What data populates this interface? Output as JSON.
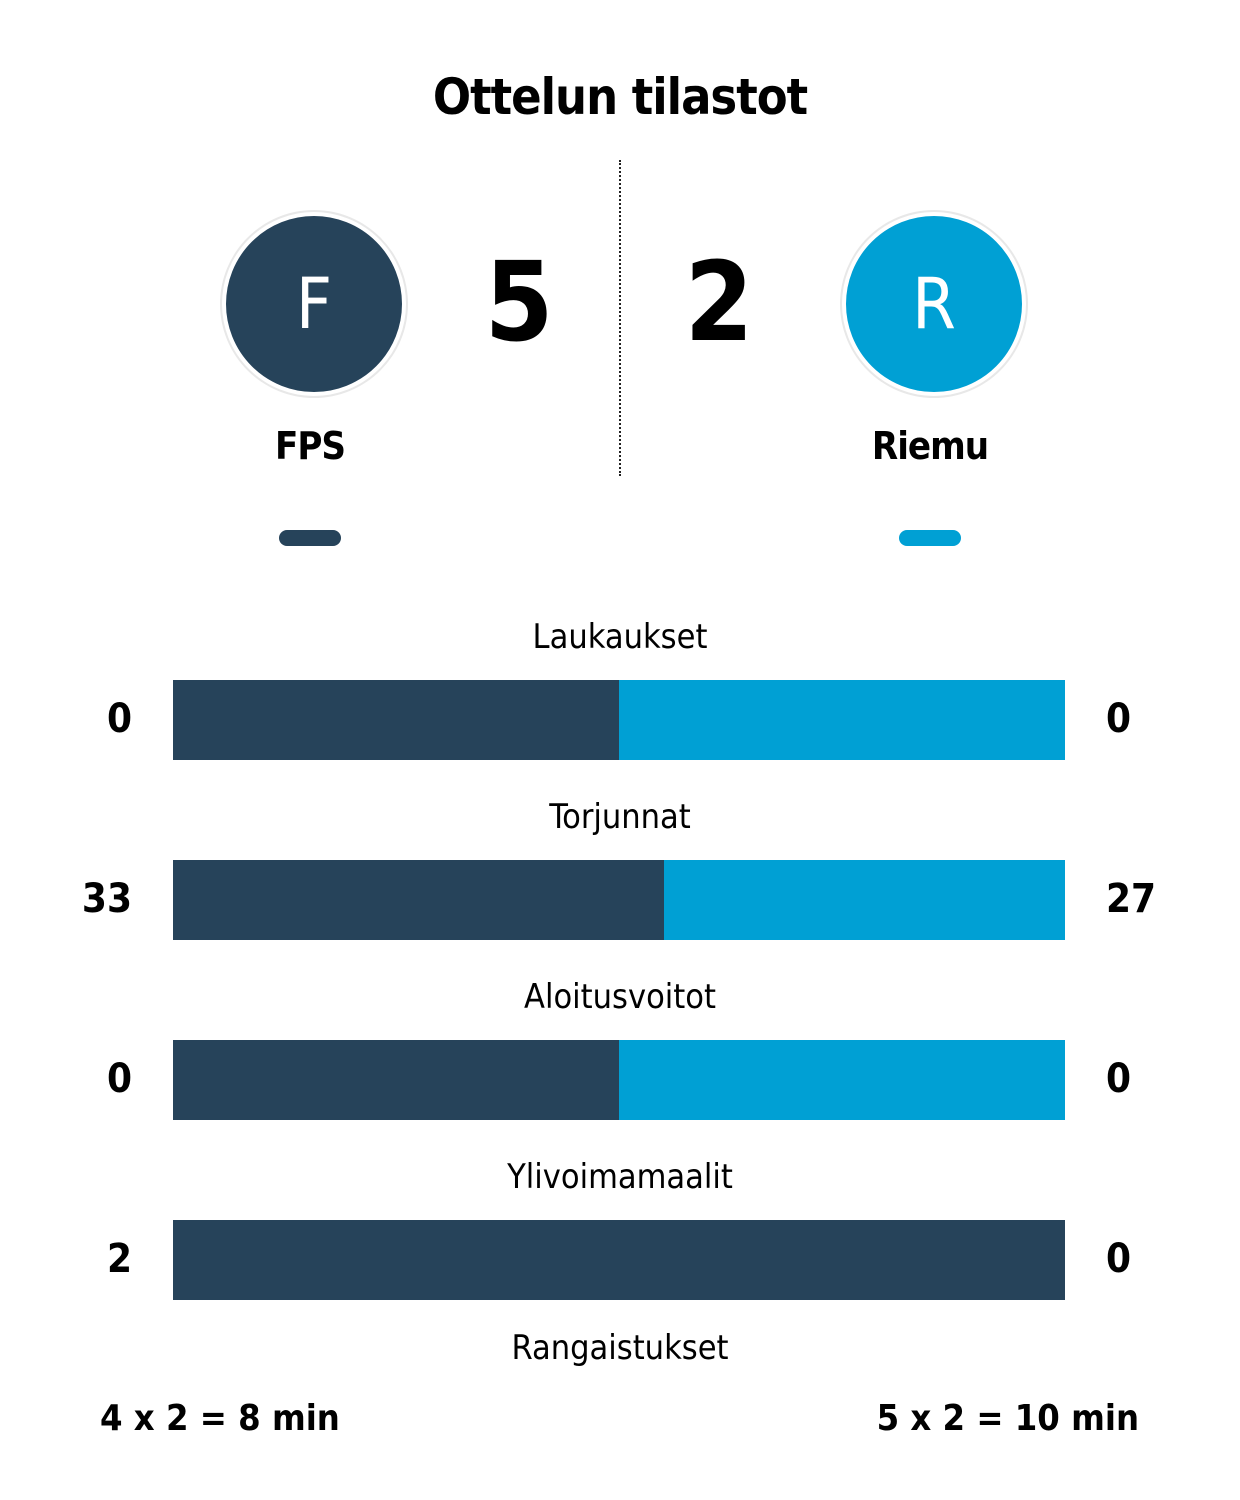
{
  "title": "Ottelun tilastot",
  "colors": {
    "home": "#26435a",
    "away": "#00a0d4"
  },
  "home": {
    "name": "FPS",
    "initial": "F",
    "score": "5"
  },
  "away": {
    "name": "Riemu",
    "initial": "R",
    "score": "2"
  },
  "stats": [
    {
      "label": "Laukaukset",
      "home": 0,
      "away": 0
    },
    {
      "label": "Torjunnat",
      "home": 33,
      "away": 27
    },
    {
      "label": "Aloitusvoitot",
      "home": 0,
      "away": 0
    },
    {
      "label": "Ylivoimamaalit",
      "home": 2,
      "away": 0
    }
  ],
  "penalties": {
    "label": "Rangaistukset",
    "home": "4 x 2 = 8 min",
    "away": "5 x 2 = 10 min"
  }
}
